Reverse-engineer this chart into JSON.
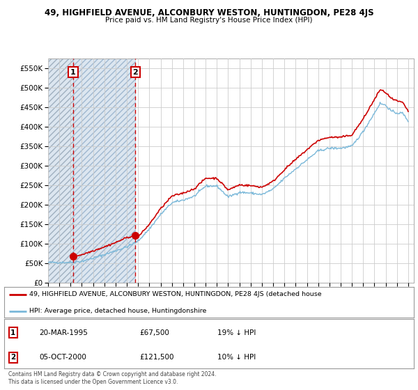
{
  "title": "49, HIGHFIELD AVENUE, ALCONBURY WESTON, HUNTINGDON, PE28 4JS",
  "subtitle": "Price paid vs. HM Land Registry's House Price Index (HPI)",
  "xlim_years": [
    1993,
    2025.5
  ],
  "ylim": [
    0,
    575000
  ],
  "yticks": [
    0,
    50000,
    100000,
    150000,
    200000,
    250000,
    300000,
    350000,
    400000,
    450000,
    500000,
    550000
  ],
  "ytick_labels": [
    "£0",
    "£50K",
    "£100K",
    "£150K",
    "£200K",
    "£250K",
    "£300K",
    "£350K",
    "£400K",
    "£450K",
    "£500K",
    "£550K"
  ],
  "sale1_date": 1995.22,
  "sale1_price": 67500,
  "sale1_label": "1",
  "sale2_date": 2000.75,
  "sale2_price": 121500,
  "sale2_label": "2",
  "legend_line1": "49, HIGHFIELD AVENUE, ALCONBURY WESTON, HUNTINGDON, PE28 4JS (detached house",
  "legend_line2": "HPI: Average price, detached house, Huntingdonshire",
  "table_row1": [
    "1",
    "20-MAR-1995",
    "£67,500",
    "19% ↓ HPI"
  ],
  "table_row2": [
    "2",
    "05-OCT-2000",
    "£121,500",
    "10% ↓ HPI"
  ],
  "copyright": "Contains HM Land Registry data © Crown copyright and database right 2024.\nThis data is licensed under the Open Government Licence v3.0.",
  "hpi_color": "#7ab8d9",
  "sale_color": "#cc0000",
  "hatch_fill_color": "#dce6f0",
  "hatch_fill_color2": "#dce6f0",
  "bg_color": "#ffffff",
  "grid_color": "#cccccc",
  "vline_color": "#cc0000",
  "hpi_keypoints": [
    [
      1993.0,
      52000
    ],
    [
      1994.0,
      52000
    ],
    [
      1995.0,
      52000
    ],
    [
      1996.0,
      55000
    ],
    [
      1997.0,
      63000
    ],
    [
      1998.0,
      72000
    ],
    [
      1999.0,
      82000
    ],
    [
      2000.0,
      92000
    ],
    [
      2001.0,
      107000
    ],
    [
      2002.0,
      138000
    ],
    [
      2003.0,
      175000
    ],
    [
      2004.0,
      205000
    ],
    [
      2005.0,
      212000
    ],
    [
      2006.0,
      222000
    ],
    [
      2007.0,
      248000
    ],
    [
      2008.0,
      248000
    ],
    [
      2009.0,
      220000
    ],
    [
      2010.0,
      232000
    ],
    [
      2011.0,
      230000
    ],
    [
      2012.0,
      226000
    ],
    [
      2013.0,
      240000
    ],
    [
      2014.0,
      268000
    ],
    [
      2015.0,
      292000
    ],
    [
      2016.0,
      315000
    ],
    [
      2017.0,
      338000
    ],
    [
      2018.0,
      345000
    ],
    [
      2019.0,
      345000
    ],
    [
      2020.0,
      350000
    ],
    [
      2021.0,
      388000
    ],
    [
      2022.0,
      435000
    ],
    [
      2022.5,
      460000
    ],
    [
      2023.0,
      455000
    ],
    [
      2023.5,
      440000
    ],
    [
      2024.0,
      435000
    ],
    [
      2024.5,
      435000
    ],
    [
      2025.0,
      415000
    ]
  ],
  "red_keypoints": [
    [
      1995.22,
      67500
    ],
    [
      1996.0,
      72000
    ],
    [
      1997.0,
      82000
    ],
    [
      1998.0,
      92000
    ],
    [
      1999.0,
      103000
    ],
    [
      2000.0,
      116000
    ],
    [
      2000.75,
      121500
    ],
    [
      2001.0,
      117000
    ],
    [
      2002.0,
      150000
    ],
    [
      2003.0,
      190000
    ],
    [
      2004.0,
      222000
    ],
    [
      2005.0,
      230000
    ],
    [
      2006.0,
      241000
    ],
    [
      2007.0,
      268000
    ],
    [
      2008.0,
      268000
    ],
    [
      2009.0,
      238000
    ],
    [
      2010.0,
      251000
    ],
    [
      2011.0,
      249000
    ],
    [
      2012.0,
      245000
    ],
    [
      2013.0,
      260000
    ],
    [
      2014.0,
      290000
    ],
    [
      2015.0,
      316000
    ],
    [
      2016.0,
      341000
    ],
    [
      2017.0,
      365000
    ],
    [
      2018.0,
      373000
    ],
    [
      2019.0,
      373000
    ],
    [
      2020.0,
      379000
    ],
    [
      2021.0,
      420000
    ],
    [
      2022.0,
      470000
    ],
    [
      2022.5,
      495000
    ],
    [
      2023.0,
      488000
    ],
    [
      2023.5,
      472000
    ],
    [
      2024.0,
      466000
    ],
    [
      2024.5,
      462000
    ],
    [
      2025.0,
      440000
    ]
  ]
}
